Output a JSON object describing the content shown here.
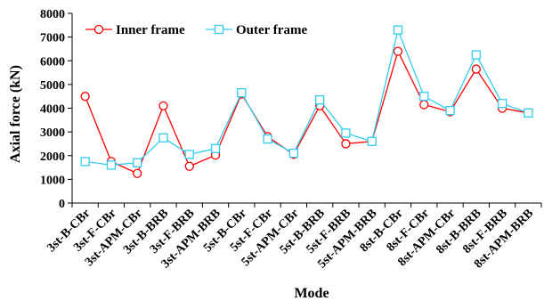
{
  "chart_data": {
    "type": "line",
    "title": "",
    "xlabel": "Mode",
    "ylabel": "Axial force (kN)",
    "ylim": [
      0,
      8000
    ],
    "yticks": [
      0,
      1000,
      2000,
      3000,
      4000,
      5000,
      6000,
      7000,
      8000
    ],
    "grid": false,
    "legend_position": "top-left",
    "categories": [
      "3st-B-CBr",
      "3st-F-CBr",
      "3st-APM-CBr",
      "3st-B-BRB",
      "3st-F-BRB",
      "3st-APM-BRB",
      "5st-B-CBr",
      "5st-F-CBr",
      "5st-APM-CBr",
      "5st-B-BRB",
      "5st-F-BRB",
      "5st-APM-BRB",
      "8st-B-CBr",
      "8st-F-CBr",
      "8st-APM-CBr",
      "8st-B-BRB",
      "8st-F-BRB",
      "8st-APM-BRB"
    ],
    "series": [
      {
        "name": "Inner frame",
        "color": "#ff0000",
        "marker": "circle",
        "values": [
          4500,
          1750,
          1250,
          4100,
          1550,
          2020,
          4600,
          2800,
          2050,
          4100,
          2500,
          2600,
          6400,
          4150,
          3850,
          5650,
          4000,
          3800
        ]
      },
      {
        "name": "Outer frame",
        "color": "#33ccee",
        "marker": "square",
        "values": [
          1750,
          1600,
          1700,
          2750,
          2050,
          2300,
          4650,
          2700,
          2100,
          4350,
          2950,
          2600,
          7300,
          4500,
          3900,
          6250,
          4200,
          3800
        ]
      }
    ]
  }
}
